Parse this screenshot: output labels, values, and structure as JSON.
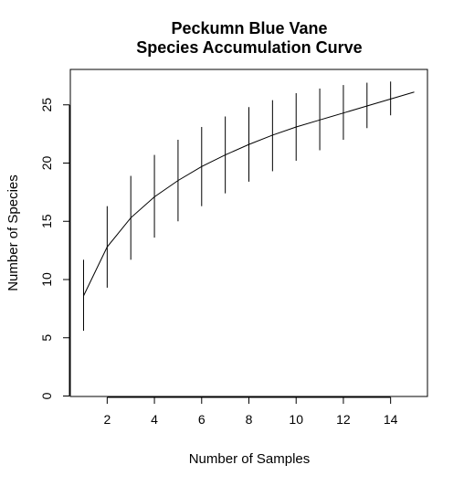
{
  "chart_data": {
    "type": "line",
    "title_lines": [
      "Peckumn Blue Vane",
      "Species Accumulation Curve"
    ],
    "xlabel": "Number of Samples",
    "ylabel": "Number of Species",
    "xlim": [
      0.44,
      15.56
    ],
    "ylim": [
      -0.04,
      28.04
    ],
    "x_ticks": [
      2,
      4,
      6,
      8,
      10,
      12,
      14
    ],
    "y_ticks": [
      0,
      5,
      10,
      15,
      20,
      25
    ],
    "grid": false,
    "legend": "none",
    "colors": {
      "line": "#000000",
      "error_bars": "#000000",
      "frame": "#000000"
    },
    "series": [
      {
        "x": [
          1,
          2,
          3,
          4,
          5,
          6,
          7,
          8,
          9,
          10,
          11,
          12,
          13,
          14,
          15
        ],
        "y": [
          8.6,
          12.8,
          15.3,
          17.1,
          18.5,
          19.7,
          20.7,
          21.6,
          22.4,
          23.1,
          23.7,
          24.3,
          24.9,
          25.5,
          26.1
        ],
        "error_bars": [
          [
            5.6,
            11.7
          ],
          [
            9.3,
            16.3
          ],
          [
            11.7,
            18.9
          ],
          [
            13.6,
            20.7
          ],
          [
            15.0,
            22.0
          ],
          [
            16.3,
            23.1
          ],
          [
            17.4,
            24.0
          ],
          [
            18.4,
            24.8
          ],
          [
            19.3,
            25.4
          ],
          [
            20.2,
            26.0
          ],
          [
            21.1,
            26.4
          ],
          [
            22.0,
            26.7
          ],
          [
            23.0,
            26.9
          ],
          [
            24.1,
            27.0
          ],
          [
            26.1,
            26.1
          ]
        ]
      }
    ]
  }
}
